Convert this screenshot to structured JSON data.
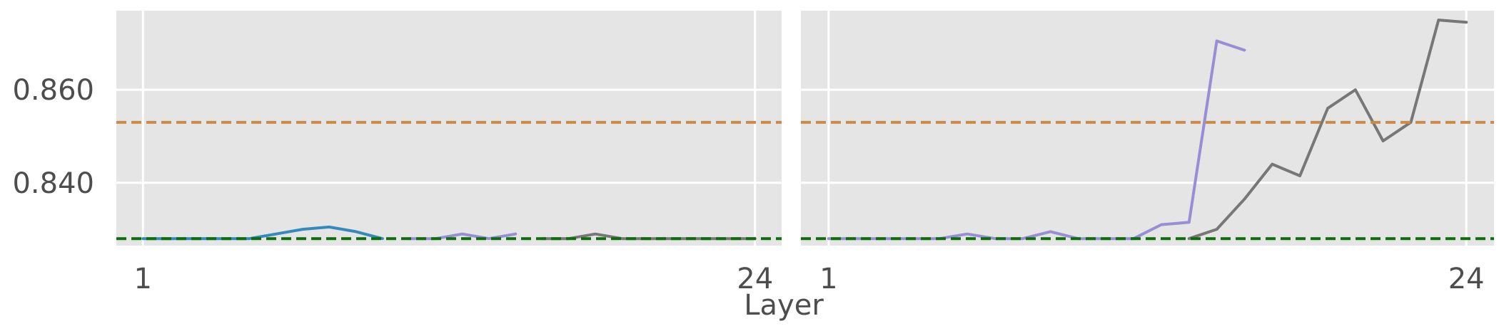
{
  "chart_data": {
    "type": "line",
    "xlabel": "Layer",
    "grid": true,
    "background": "#e5e5e5",
    "y_ticks": [
      {
        "value": 0.84,
        "label": "0.840"
      },
      {
        "value": 0.86,
        "label": "0.860"
      }
    ],
    "ylim": [
      0.8265,
      0.877
    ],
    "xlim": [
      0.0,
      25.0
    ],
    "panels": [
      {
        "x_ticks": [
          {
            "value": 1,
            "label": "1"
          },
          {
            "value": 24,
            "label": "24"
          }
        ],
        "series": [
          {
            "color": "#348abd",
            "x": [
              1,
              2,
              3,
              4,
              5,
              6,
              7,
              8,
              9,
              10
            ],
            "y": [
              0.828,
              0.828,
              0.828,
              0.828,
              0.828,
              0.829,
              0.83,
              0.8305,
              0.8295,
              0.828
            ]
          },
          {
            "color": "#988ed5",
            "x": [
              11,
              12,
              13,
              14,
              15
            ],
            "y": [
              0.828,
              0.828,
              0.829,
              0.828,
              0.829
            ]
          },
          {
            "color": "#777777",
            "x": [
              16,
              17,
              18,
              19,
              20,
              21,
              22,
              23,
              24
            ],
            "y": [
              0.828,
              0.828,
              0.829,
              0.828,
              0.828,
              0.828,
              0.828,
              0.828,
              0.828
            ]
          }
        ]
      },
      {
        "x_ticks": [
          {
            "value": 1,
            "label": "1"
          },
          {
            "value": 24,
            "label": "24"
          }
        ],
        "series": [
          {
            "color": "#988ed5",
            "x": [
              1,
              2,
              3,
              4,
              5,
              6,
              7,
              8,
              9,
              10,
              11,
              12,
              13,
              14,
              15,
              16
            ],
            "y": [
              0.828,
              0.828,
              0.828,
              0.828,
              0.828,
              0.829,
              0.828,
              0.828,
              0.8295,
              0.828,
              0.828,
              0.828,
              0.831,
              0.8315,
              0.8705,
              0.8685
            ]
          },
          {
            "color": "#777777",
            "x": [
              14,
              15,
              16,
              17,
              18,
              19,
              20,
              21,
              22,
              23,
              24
            ],
            "y": [
              0.828,
              0.83,
              0.8365,
              0.844,
              0.8415,
              0.856,
              0.86,
              0.849,
              0.853,
              0.875,
              0.8745
            ]
          }
        ]
      }
    ],
    "reference_lines": [
      {
        "value": 0.853,
        "color": "#cc8a4a",
        "style": "dashed"
      },
      {
        "value": 0.828,
        "color": "#0b6e0b",
        "style": "dashed"
      }
    ]
  }
}
